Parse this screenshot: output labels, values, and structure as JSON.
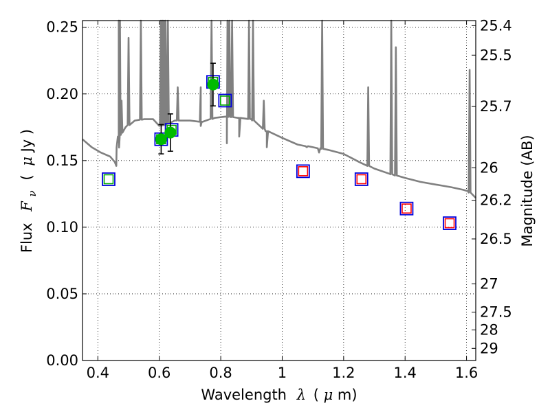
{
  "chart_data": {
    "type": "scatter",
    "xlabel": "Wavelength",
    "xlabel_symbol": "λ",
    "xlabel_unit_open": "(",
    "xlabel_unit_mu": "μ",
    "xlabel_unit_rest": "m)",
    "ylabel": "Flux",
    "ylabel_symbol": "F",
    "ylabel_subscript": "ν",
    "ylabel_unit_open": "(",
    "ylabel_unit_mu": "μ",
    "ylabel_unit_rest": "Jy )",
    "y2label": "Magnitude (AB)",
    "xlim": [
      0.35,
      1.63
    ],
    "ylim": [
      0.0,
      0.255
    ],
    "grid": true,
    "x_ticks": [
      0.4,
      0.6,
      0.8,
      1.0,
      1.2,
      1.4,
      1.6
    ],
    "x_tick_labels": [
      "0.4",
      "0.6",
      "0.8",
      "1",
      "1.2",
      "1.4",
      "1.6"
    ],
    "y_ticks": [
      0.0,
      0.05,
      0.1,
      0.15,
      0.2,
      0.25
    ],
    "y_tick_labels": [
      "0.00",
      "0.05",
      "0.10",
      "0.15",
      "0.20",
      "0.25"
    ],
    "y2_ticks": [
      25.4,
      25.5,
      25.7,
      26,
      26.2,
      26.5,
      27,
      27.5,
      28,
      29
    ],
    "y2_tick_labels": [
      "25.4",
      "25.5",
      "25.7",
      "26",
      "26.2",
      "26.5",
      "27",
      "27.5",
      "28",
      "29"
    ],
    "series": [
      {
        "name": "observed",
        "style": "green-circle-errorbar",
        "color": "#00bb00",
        "points": [
          {
            "x": 0.606,
            "y": 0.166,
            "err": 0.011
          },
          {
            "x": 0.636,
            "y": 0.171,
            "err": 0.014
          },
          {
            "x": 0.775,
            "y": 0.207,
            "err": 0.016
          }
        ]
      },
      {
        "name": "model_green",
        "style": "green-inner-square",
        "color": "#00aa00",
        "points": [
          {
            "x": 0.435,
            "y": 0.136
          },
          {
            "x": 0.606,
            "y": 0.166
          },
          {
            "x": 0.64,
            "y": 0.173
          },
          {
            "x": 0.775,
            "y": 0.209
          },
          {
            "x": 0.814,
            "y": 0.195
          }
        ]
      },
      {
        "name": "model_red",
        "style": "red-inner-square",
        "color": "#ff0000",
        "points": [
          {
            "x": 1.068,
            "y": 0.142
          },
          {
            "x": 1.258,
            "y": 0.136
          },
          {
            "x": 1.405,
            "y": 0.114
          },
          {
            "x": 1.545,
            "y": 0.103
          }
        ]
      },
      {
        "name": "model_blue",
        "style": "blue-outer-square",
        "color": "#0000dd",
        "points": [
          {
            "x": 0.435,
            "y": 0.136
          },
          {
            "x": 0.606,
            "y": 0.166
          },
          {
            "x": 0.64,
            "y": 0.173
          },
          {
            "x": 0.775,
            "y": 0.209
          },
          {
            "x": 0.814,
            "y": 0.195
          },
          {
            "x": 1.068,
            "y": 0.142
          },
          {
            "x": 1.258,
            "y": 0.136
          },
          {
            "x": 1.405,
            "y": 0.114
          },
          {
            "x": 1.545,
            "y": 0.103
          }
        ]
      },
      {
        "name": "template_spectrum",
        "style": "gray-line",
        "color": "#808080",
        "continuum": [
          [
            0.35,
            0.166
          ],
          [
            0.38,
            0.16
          ],
          [
            0.41,
            0.156
          ],
          [
            0.44,
            0.153
          ],
          [
            0.455,
            0.149
          ],
          [
            0.46,
            0.146
          ],
          [
            0.468,
            0.168
          ],
          [
            0.49,
            0.175
          ],
          [
            0.52,
            0.18
          ],
          [
            0.55,
            0.181
          ],
          [
            0.58,
            0.181
          ],
          [
            0.6,
            0.176
          ],
          [
            0.62,
            0.177
          ],
          [
            0.65,
            0.18
          ],
          [
            0.7,
            0.18
          ],
          [
            0.74,
            0.179
          ],
          [
            0.78,
            0.182
          ],
          [
            0.82,
            0.183
          ],
          [
            0.86,
            0.182
          ],
          [
            0.9,
            0.181
          ],
          [
            0.95,
            0.172
          ],
          [
            1.0,
            0.167
          ],
          [
            1.05,
            0.162
          ],
          [
            1.1,
            0.16
          ],
          [
            1.15,
            0.158
          ],
          [
            1.2,
            0.155
          ],
          [
            1.25,
            0.149
          ],
          [
            1.3,
            0.144
          ],
          [
            1.35,
            0.14
          ],
          [
            1.4,
            0.137
          ],
          [
            1.45,
            0.134
          ],
          [
            1.5,
            0.132
          ],
          [
            1.55,
            0.13
          ],
          [
            1.59,
            0.128
          ],
          [
            1.605,
            0.127
          ],
          [
            1.63,
            0.122
          ]
        ],
        "emission_lines": [
          [
            0.468,
            0.255
          ],
          [
            0.472,
            0.255
          ],
          [
            0.477,
            0.195
          ],
          [
            0.5,
            0.242
          ],
          [
            0.54,
            0.255
          ],
          [
            0.605,
            0.255
          ],
          [
            0.61,
            0.255
          ],
          [
            0.615,
            0.255
          ],
          [
            0.62,
            0.255
          ],
          [
            0.628,
            0.255
          ],
          [
            0.66,
            0.205
          ],
          [
            0.735,
            0.205
          ],
          [
            0.77,
            0.255
          ],
          [
            0.822,
            0.255
          ],
          [
            0.828,
            0.255
          ],
          [
            0.837,
            0.255
          ],
          [
            0.892,
            0.255
          ],
          [
            0.905,
            0.255
          ],
          [
            0.94,
            0.195
          ],
          [
            1.13,
            0.255
          ],
          [
            1.28,
            0.205
          ],
          [
            1.355,
            0.255
          ],
          [
            1.37,
            0.235
          ],
          [
            1.61,
            0.218
          ]
        ],
        "absorption_lines": [
          [
            0.465,
            0.164
          ],
          [
            0.735,
            0.176
          ],
          [
            0.82,
            0.163
          ],
          [
            0.86,
            0.168
          ],
          [
            0.95,
            0.16
          ],
          [
            1.08,
            0.16
          ],
          [
            1.12,
            0.156
          ]
        ]
      }
    ]
  }
}
